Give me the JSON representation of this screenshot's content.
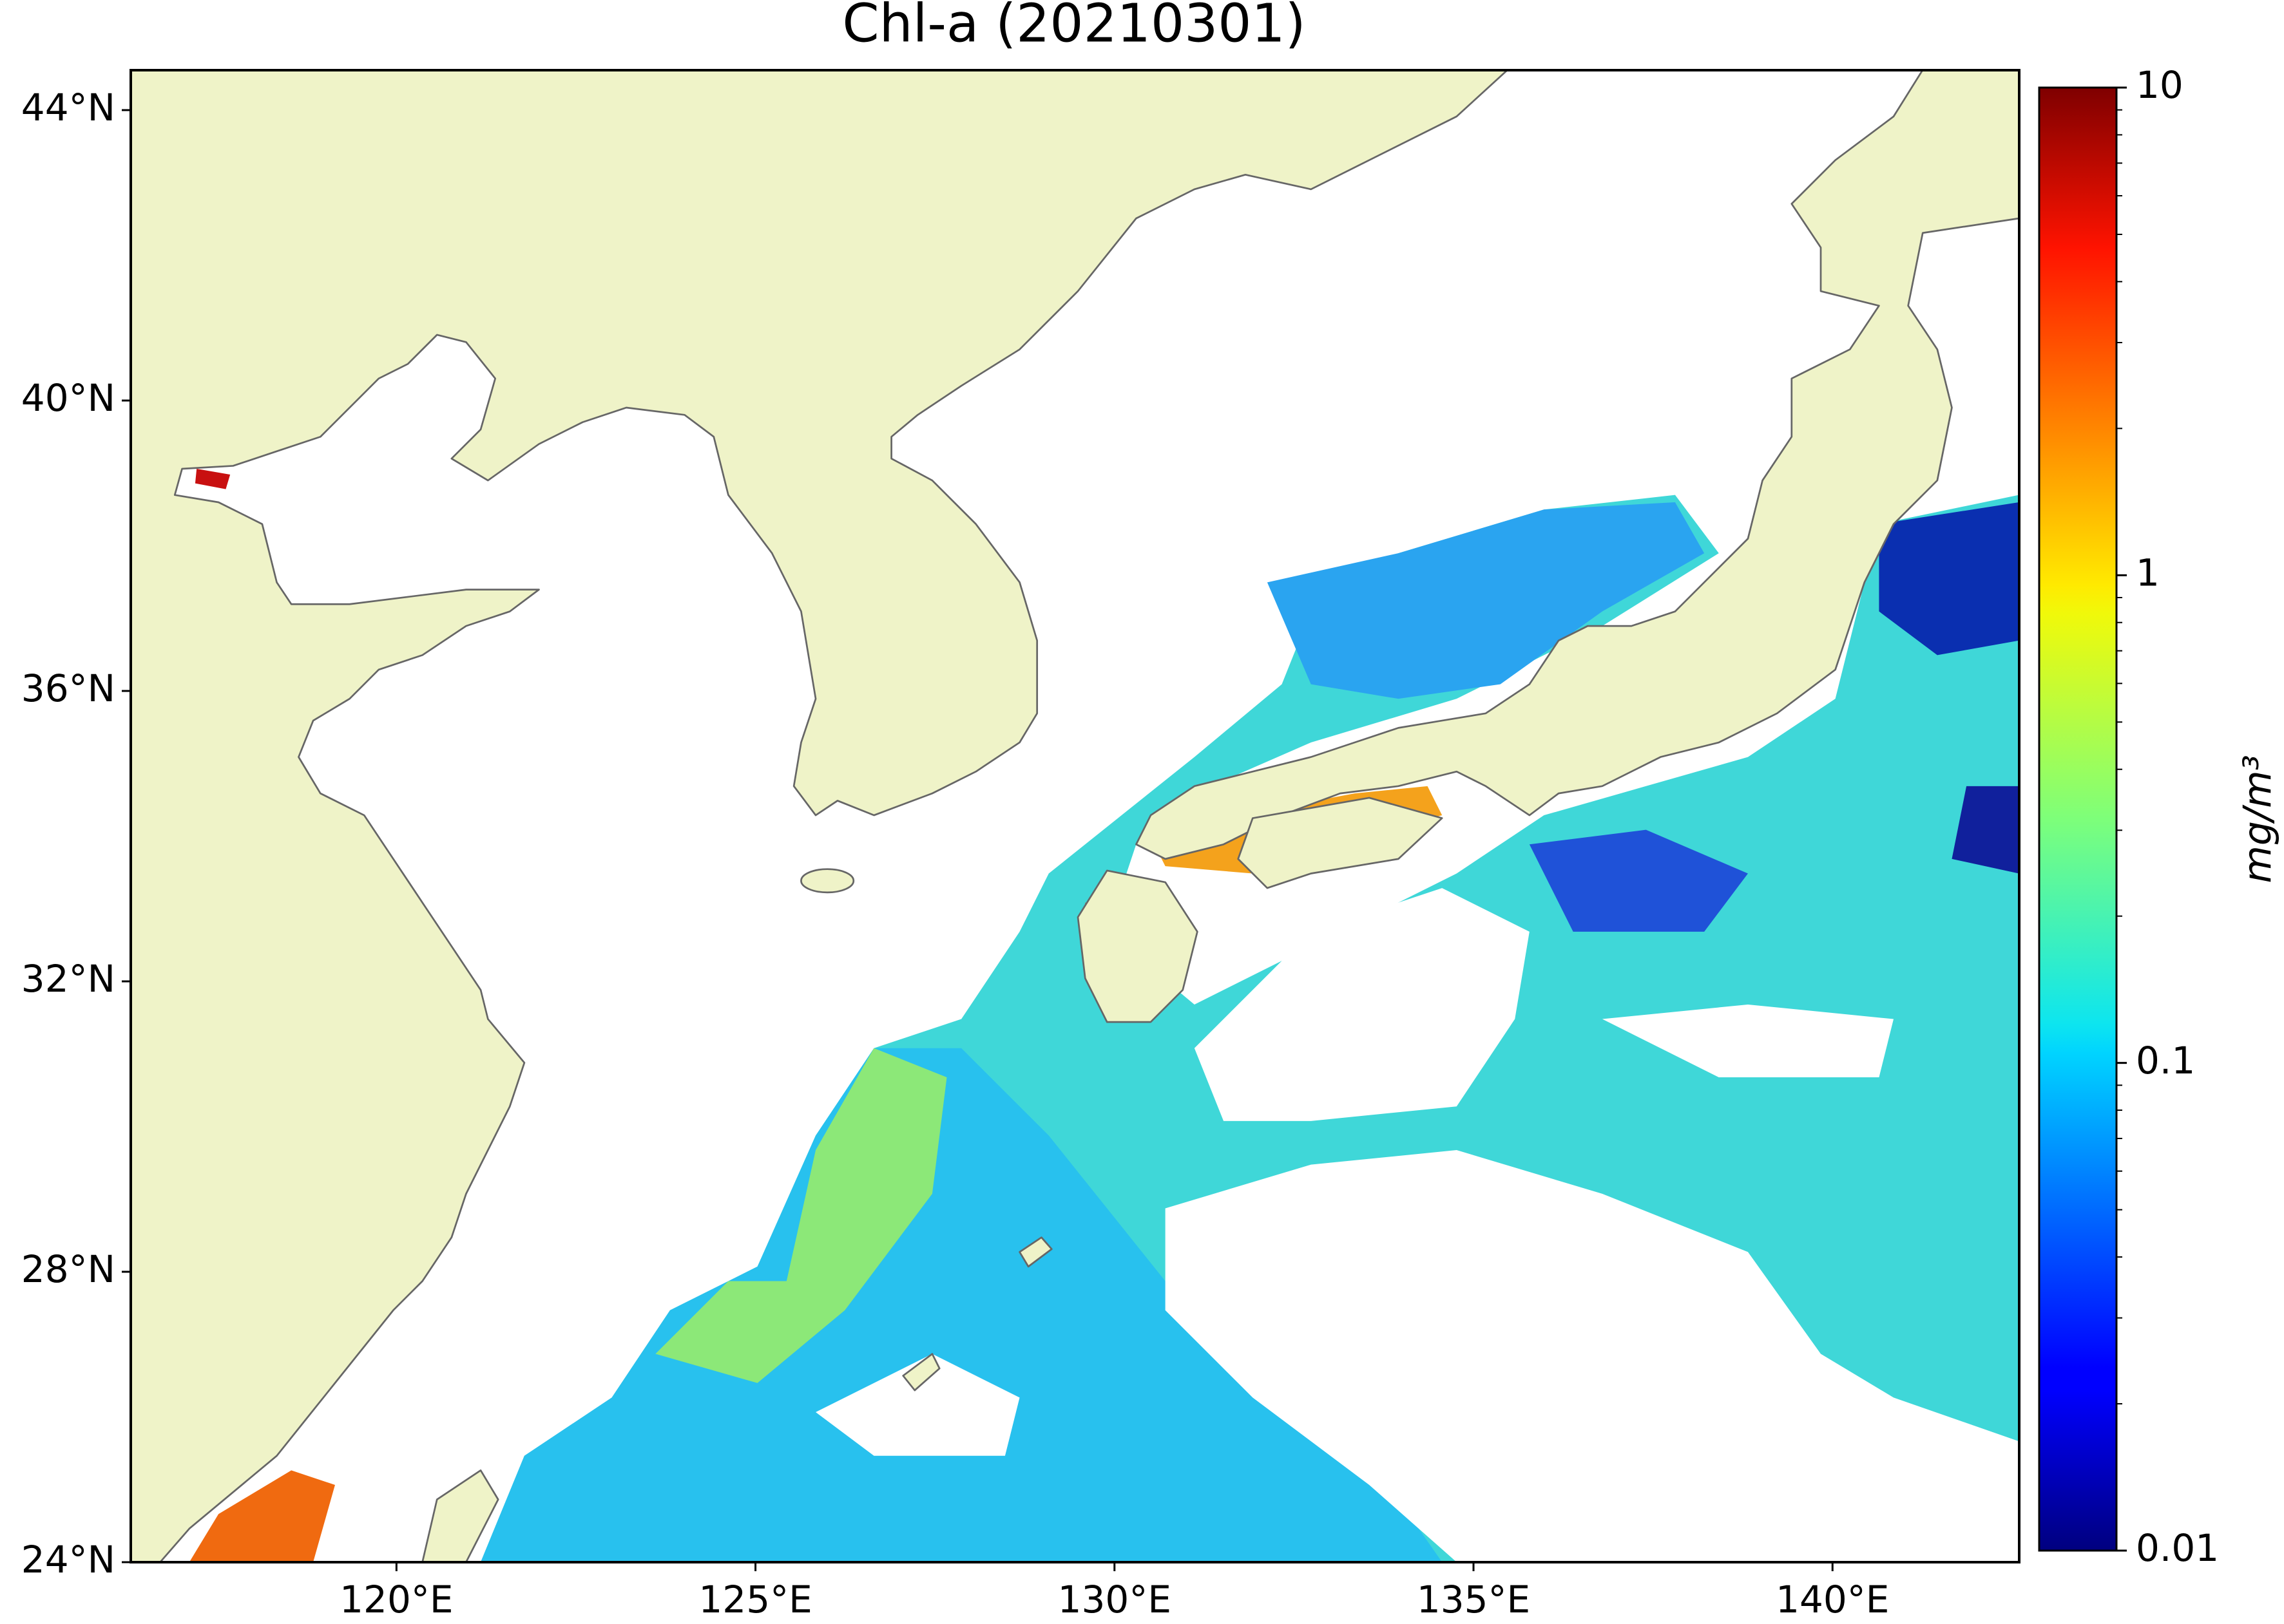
{
  "chart_data": {
    "type": "map",
    "title": "Chl-a (20210301)",
    "xlim": [
      116.3,
      142.6
    ],
    "ylim": [
      24,
      44.55
    ],
    "xticks": [
      {
        "value": 120,
        "label": "120°E"
      },
      {
        "value": 125,
        "label": "125°E"
      },
      {
        "value": 130,
        "label": "130°E"
      },
      {
        "value": 135,
        "label": "135°E"
      },
      {
        "value": 140,
        "label": "140°E"
      }
    ],
    "yticks": [
      {
        "value": 24,
        "label": "24°N"
      },
      {
        "value": 28,
        "label": "28°N"
      },
      {
        "value": 32,
        "label": "32°N"
      },
      {
        "value": 36,
        "label": "36°N"
      },
      {
        "value": 40,
        "label": "40°N"
      },
      {
        "value": 44,
        "label": "44°N"
      }
    ],
    "colorbar": {
      "label": "mg/m³",
      "scale": "log",
      "cmap": "jet",
      "lim": [
        0.01,
        10
      ],
      "ticks": [
        0.01,
        0.1,
        1,
        10
      ],
      "minor_ticks": [
        0.02,
        0.03,
        0.04,
        0.05,
        0.06,
        0.07,
        0.08,
        0.09,
        0.2,
        0.3,
        0.4,
        0.5,
        0.6,
        0.7,
        0.8,
        0.9,
        2,
        3,
        4,
        5,
        6,
        7,
        8,
        9
      ]
    }
  }
}
